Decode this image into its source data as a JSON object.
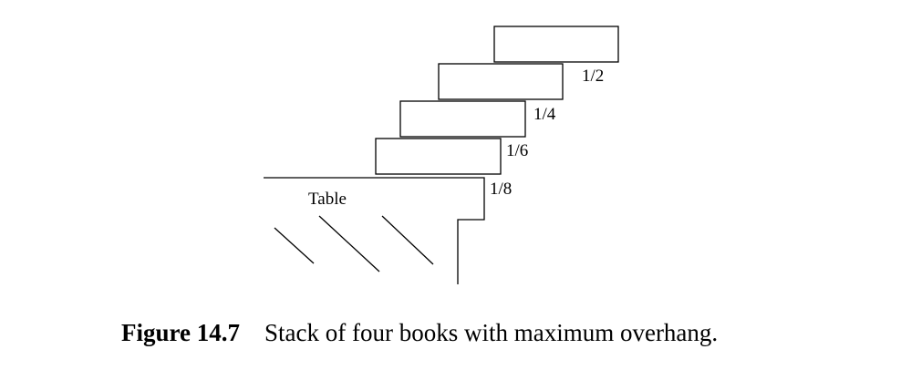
{
  "diagram": {
    "table_label": "Table",
    "overhang_labels": [
      "1/2",
      "1/4",
      "1/6",
      "1/8"
    ]
  },
  "caption": {
    "figure_number": "Figure 14.7",
    "text": "Stack of four books with maximum overhang."
  }
}
